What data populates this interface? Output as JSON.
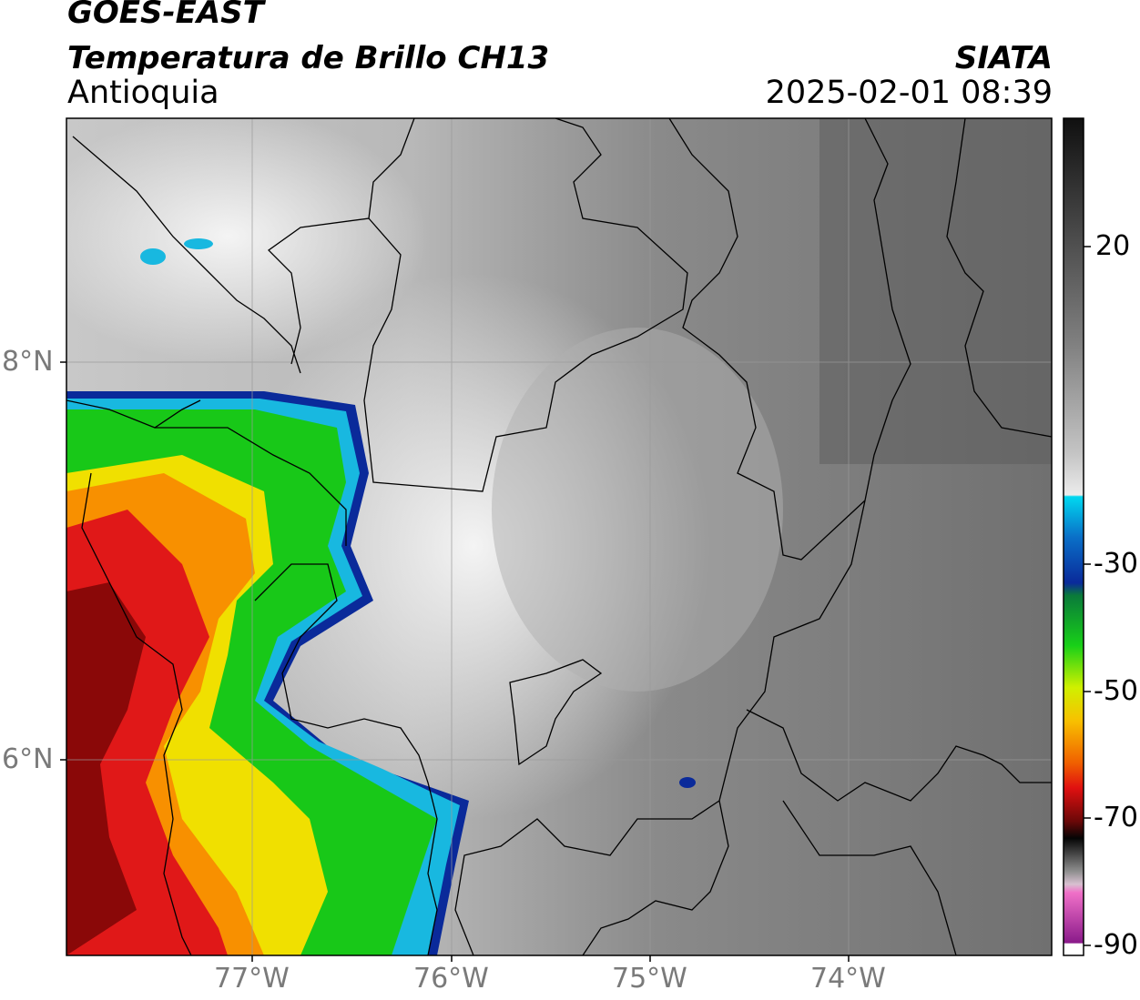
{
  "header": {
    "satellite": "GOES-EAST",
    "product": "Temperatura de Brillo CH13",
    "region": "Antioquia",
    "organization": "SIATA",
    "timestamp": "2025-02-01 08:39"
  },
  "map": {
    "lon_ticks": [
      "77°W",
      "76°W",
      "75°W",
      "74°W"
    ],
    "lat_ticks": [
      "8°N",
      "6°N"
    ]
  },
  "colorbar": {
    "tick_labels": [
      "20",
      "-30",
      "-50",
      "-70",
      "-90"
    ],
    "unit_hint": "",
    "colors": {
      "warm_gray_top": "#1a1a1a",
      "light": "#f2f2f2",
      "cyan": "#00c8f0",
      "blue": "#0a2a9a",
      "green": "#18c818",
      "yellow": "#f0f000",
      "orange": "#f8a000",
      "red": "#e01010",
      "darkred": "#5a0808",
      "black": "#050505",
      "pink": "#f070c0",
      "purple": "#8a1a8a"
    }
  }
}
